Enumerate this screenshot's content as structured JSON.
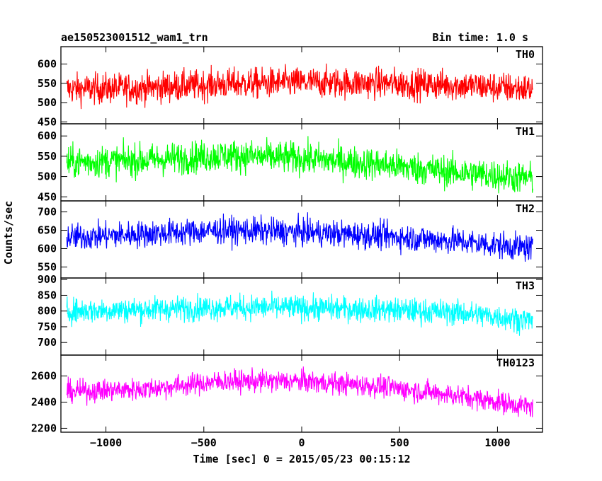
{
  "header": {
    "title_left": "ae150523001512_wam1_trn",
    "title_right": "Bin time: 1.0 s"
  },
  "chart_data": {
    "type": "line",
    "xlabel": "Time [sec] 0 = 2015/05/23 00:15:12",
    "ylabel": "Counts/sec",
    "xlim": [
      -1230,
      1230
    ],
    "xticks": [
      -1000,
      -500,
      0,
      500,
      1000
    ],
    "x_range": [
      -1200,
      1180
    ],
    "panels": [
      {
        "name": "TH0",
        "color": "#ff0000",
        "ylim": [
          445,
          645
        ],
        "yticks": [
          450,
          500,
          550,
          600
        ],
        "x": [
          -1200,
          -800,
          -400,
          0,
          400,
          800,
          1180
        ],
        "mean": [
          535,
          538,
          548,
          552,
          550,
          545,
          535
        ],
        "spread": 52
      },
      {
        "name": "TH1",
        "color": "#00ff00",
        "ylim": [
          440,
          630
        ],
        "yticks": [
          450,
          500,
          550,
          600
        ],
        "x": [
          -1200,
          -800,
          -400,
          0,
          400,
          800,
          1180
        ],
        "mean": [
          535,
          540,
          552,
          545,
          530,
          510,
          495
        ],
        "spread": 52
      },
      {
        "name": "TH2",
        "color": "#0000ff",
        "ylim": [
          520,
          730
        ],
        "yticks": [
          550,
          600,
          650,
          700
        ],
        "x": [
          -1200,
          -800,
          -400,
          0,
          400,
          800,
          1180
        ],
        "mean": [
          630,
          640,
          650,
          645,
          635,
          620,
          600
        ],
        "spread": 48
      },
      {
        "name": "TH3",
        "color": "#00ffff",
        "ylim": [
          660,
          905
        ],
        "yticks": [
          700,
          750,
          800,
          850,
          900
        ],
        "x": [
          -1200,
          -800,
          -400,
          0,
          400,
          800,
          1180
        ],
        "mean": [
          800,
          805,
          812,
          810,
          805,
          795,
          770
        ],
        "spread": 52
      },
      {
        "name": "TH0123",
        "color": "#ff00ff",
        "ylim": [
          2170,
          2760
        ],
        "yticks": [
          2200,
          2400,
          2600
        ],
        "x": [
          -1200,
          -800,
          -400,
          0,
          400,
          800,
          1180
        ],
        "mean": [
          2480,
          2500,
          2560,
          2560,
          2520,
          2450,
          2360
        ],
        "spread": 110
      }
    ]
  }
}
